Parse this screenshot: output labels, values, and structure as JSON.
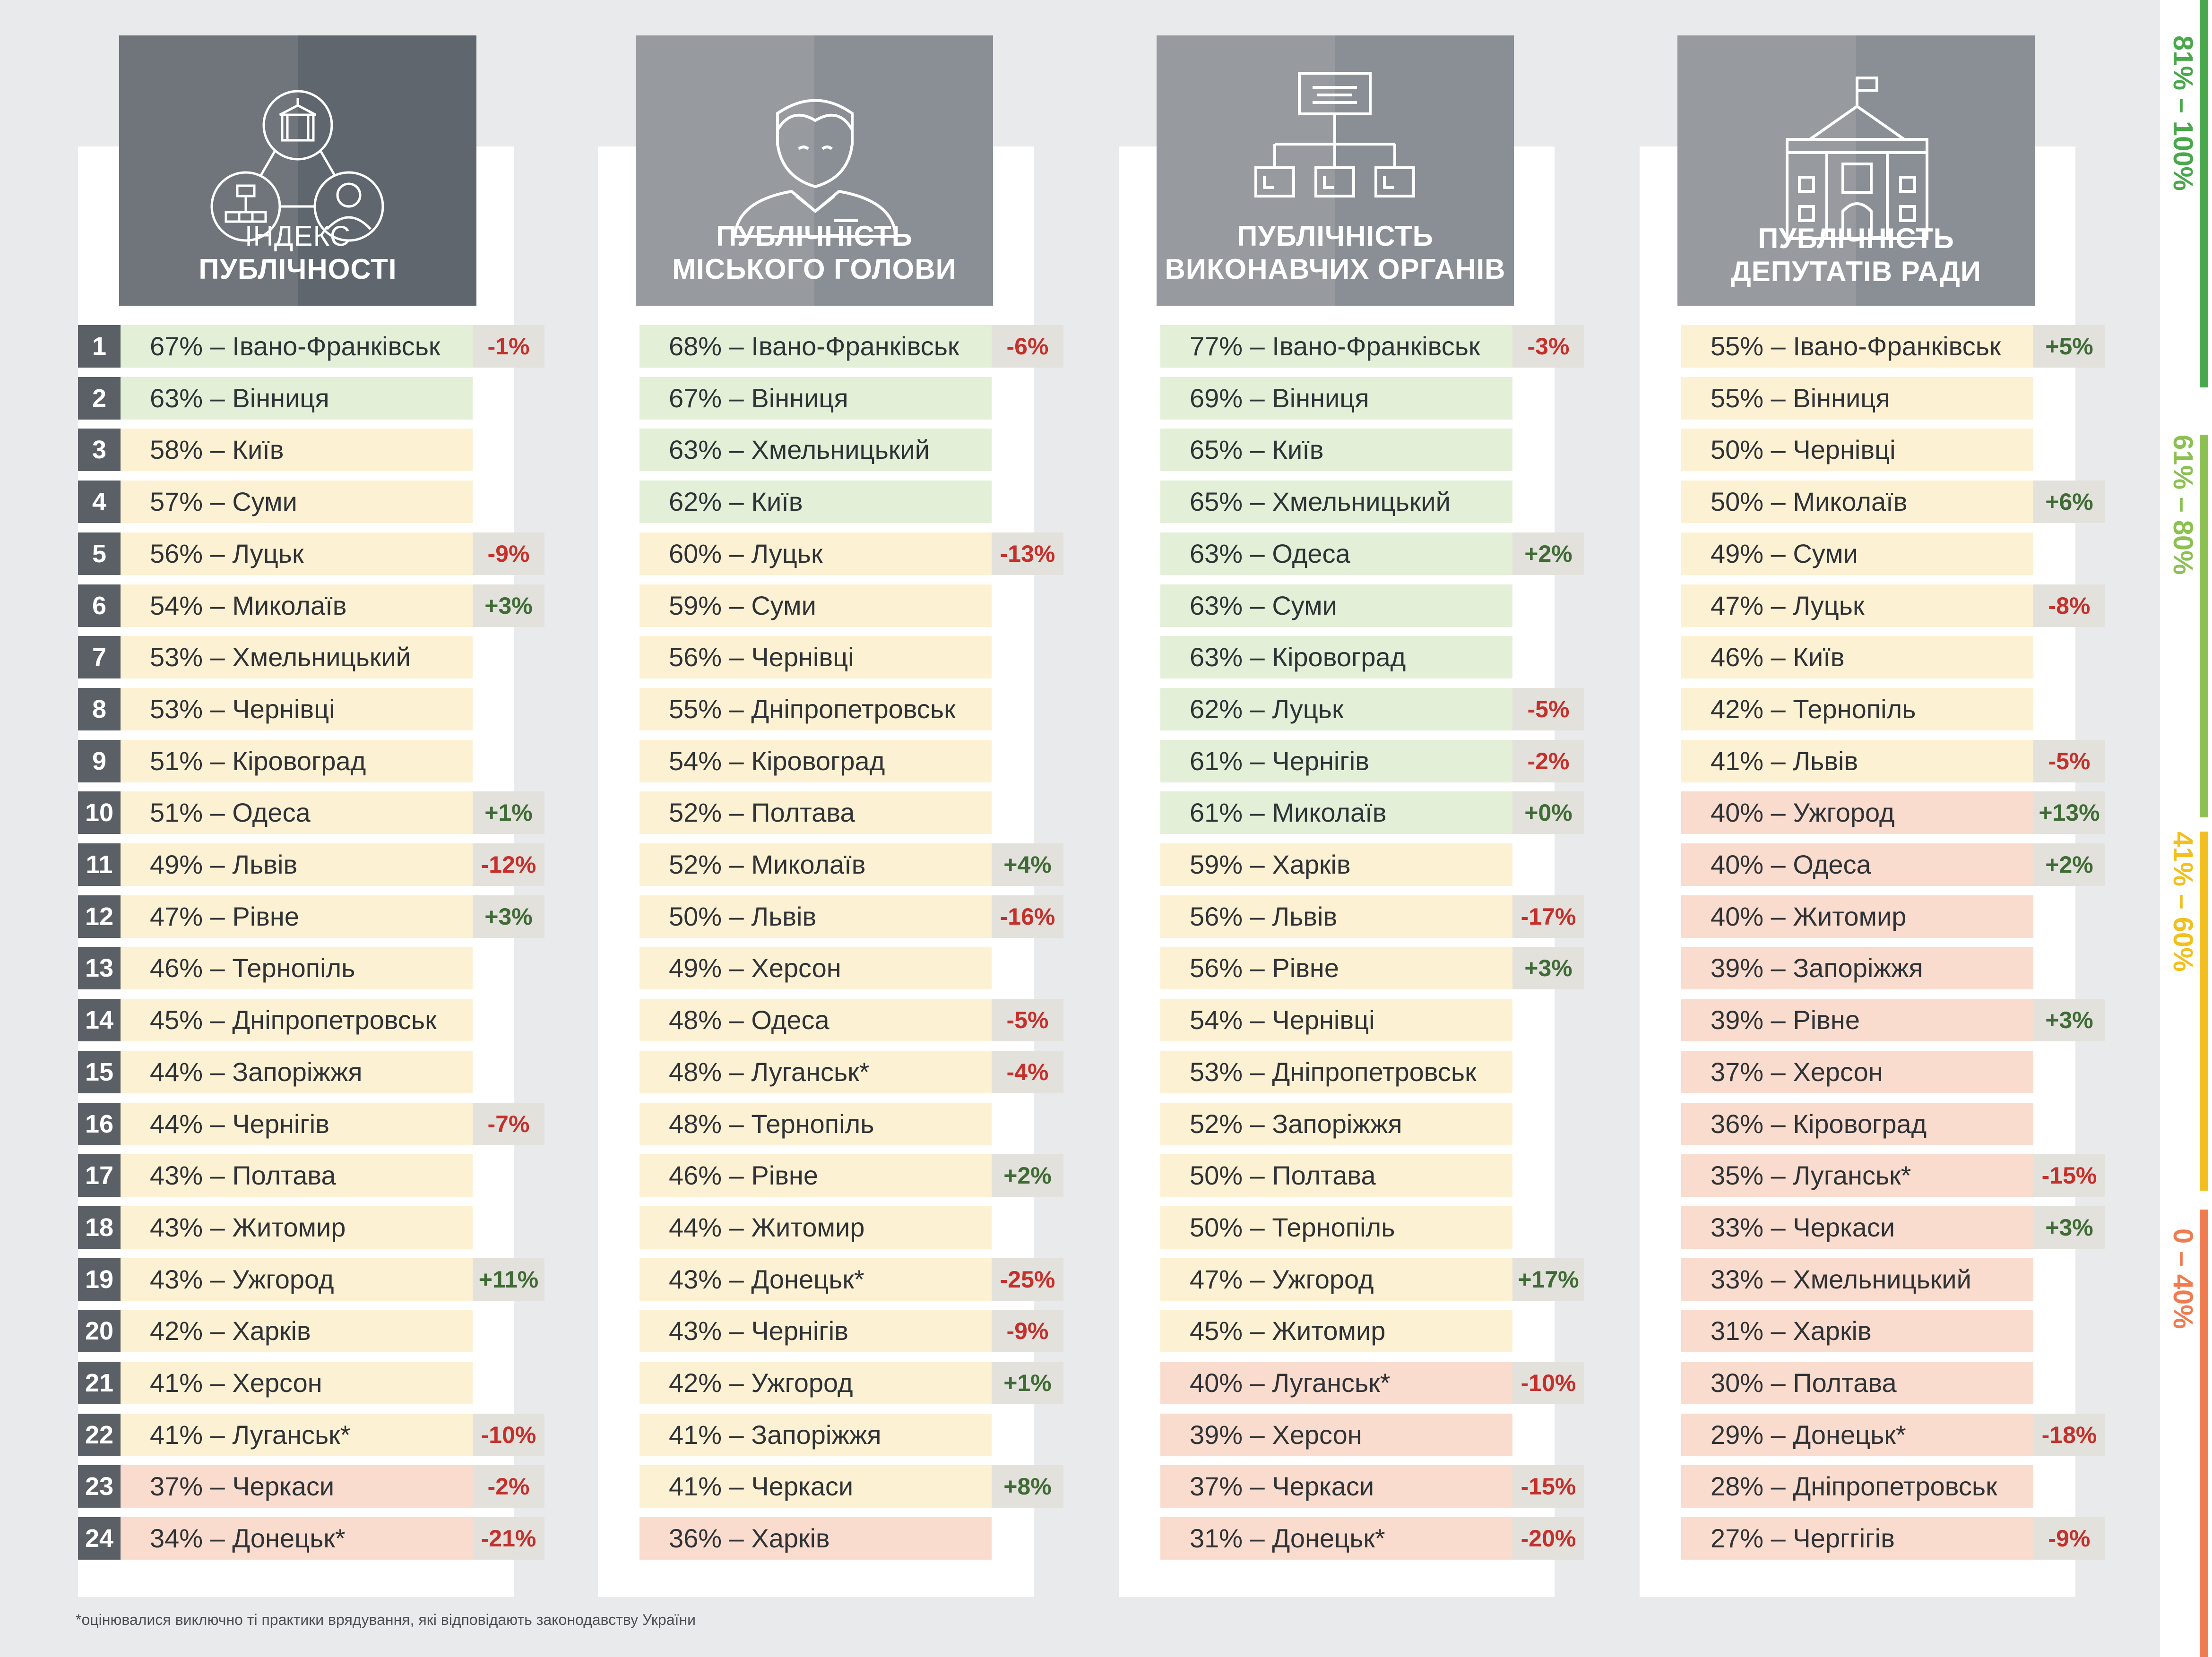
{
  "colors": {
    "green": "#e3efd7",
    "yellow": "#fdf1d3",
    "red": "#f9dccd",
    "rank_bg": "#5b6067",
    "delta_bg": "#e2e1dc",
    "pos": "#3f6b35",
    "neg": "#c4302b"
  },
  "chart_data": [
    {
      "type": "table",
      "title_line1": "ІНДЕКС",
      "title_line2": "ПУБЛІЧНОСТІ",
      "icon": "index-network-icon",
      "rows": [
        {
          "rank": "1",
          "label": "67% – Івано-Франківськ",
          "value": 67,
          "delta": "-1%",
          "band": "green"
        },
        {
          "rank": "2",
          "label": "63% – Вінниця",
          "value": 63,
          "delta": "",
          "band": "green"
        },
        {
          "rank": "3",
          "label": "58% – Київ",
          "value": 58,
          "delta": "",
          "band": "yellow"
        },
        {
          "rank": "4",
          "label": "57% – Суми",
          "value": 57,
          "delta": "",
          "band": "yellow"
        },
        {
          "rank": "5",
          "label": "56% – Луцьк",
          "value": 56,
          "delta": "-9%",
          "band": "yellow"
        },
        {
          "rank": "6",
          "label": "54% – Миколаїв",
          "value": 54,
          "delta": "+3%",
          "band": "yellow"
        },
        {
          "rank": "7",
          "label": "53% – Хмельницький",
          "value": 53,
          "delta": "",
          "band": "yellow"
        },
        {
          "rank": "8",
          "label": "53% – Чернівці",
          "value": 53,
          "delta": "",
          "band": "yellow"
        },
        {
          "rank": "9",
          "label": "51% – Кіровоград",
          "value": 51,
          "delta": "",
          "band": "yellow"
        },
        {
          "rank": "10",
          "label": "51% – Одеса",
          "value": 51,
          "delta": "+1%",
          "band": "yellow"
        },
        {
          "rank": "11",
          "label": "49% – Львів",
          "value": 49,
          "delta": "-12%",
          "band": "yellow"
        },
        {
          "rank": "12",
          "label": "47% – Рівне",
          "value": 47,
          "delta": "+3%",
          "band": "yellow"
        },
        {
          "rank": "13",
          "label": "46% – Тернопіль",
          "value": 46,
          "delta": "",
          "band": "yellow"
        },
        {
          "rank": "14",
          "label": "45% – Дніпропетровськ",
          "value": 45,
          "delta": "",
          "band": "yellow"
        },
        {
          "rank": "15",
          "label": "44% – Запоріжжя",
          "value": 44,
          "delta": "",
          "band": "yellow"
        },
        {
          "rank": "16",
          "label": "44% – Чернігів",
          "value": 44,
          "delta": "-7%",
          "band": "yellow"
        },
        {
          "rank": "17",
          "label": "43% – Полтава",
          "value": 43,
          "delta": "",
          "band": "yellow"
        },
        {
          "rank": "18",
          "label": "43% – Житомир",
          "value": 43,
          "delta": "",
          "band": "yellow"
        },
        {
          "rank": "19",
          "label": "43% – Ужгород",
          "value": 43,
          "delta": "+11%",
          "band": "yellow"
        },
        {
          "rank": "20",
          "label": "42% – Харків",
          "value": 42,
          "delta": "",
          "band": "yellow"
        },
        {
          "rank": "21",
          "label": "41% – Херсон",
          "value": 41,
          "delta": "",
          "band": "yellow"
        },
        {
          "rank": "22",
          "label": "41% – Луганськ*",
          "value": 41,
          "delta": "-10%",
          "band": "yellow"
        },
        {
          "rank": "23",
          "label": "37% – Черкаси",
          "value": 37,
          "delta": "-2%",
          "band": "red"
        },
        {
          "rank": "24",
          "label": "34% – Донецьк*",
          "value": 34,
          "delta": "-21%",
          "band": "red"
        }
      ]
    },
    {
      "type": "table",
      "title_line1": "ПУБЛІЧНІСТЬ",
      "title_line2": "МІСЬКОГО ГОЛОВИ",
      "icon": "mayor-person-icon",
      "rows": [
        {
          "label": "68% – Івано-Франківськ",
          "value": 68,
          "delta": "-6%",
          "band": "green"
        },
        {
          "label": "67% – Вінниця",
          "value": 67,
          "delta": "",
          "band": "green"
        },
        {
          "label": "63% – Хмельницький",
          "value": 63,
          "delta": "",
          "band": "green"
        },
        {
          "label": "62% – Київ",
          "value": 62,
          "delta": "",
          "band": "green"
        },
        {
          "label": "60% – Луцьк",
          "value": 60,
          "delta": "-13%",
          "band": "yellow"
        },
        {
          "label": "59% – Суми",
          "value": 59,
          "delta": "",
          "band": "yellow"
        },
        {
          "label": "56% – Чернівці",
          "value": 56,
          "delta": "",
          "band": "yellow"
        },
        {
          "label": "55% – Дніпропетровськ",
          "value": 55,
          "delta": "",
          "band": "yellow"
        },
        {
          "label": "54% – Кіровоград",
          "value": 54,
          "delta": "",
          "band": "yellow"
        },
        {
          "label": "52% – Полтава",
          "value": 52,
          "delta": "",
          "band": "yellow"
        },
        {
          "label": "52% – Миколаїв",
          "value": 52,
          "delta": "+4%",
          "band": "yellow"
        },
        {
          "label": "50% – Львів",
          "value": 50,
          "delta": "-16%",
          "band": "yellow"
        },
        {
          "label": "49% – Херсон",
          "value": 49,
          "delta": "",
          "band": "yellow"
        },
        {
          "label": "48% – Одеса",
          "value": 48,
          "delta": "-5%",
          "band": "yellow"
        },
        {
          "label": "48% – Луганськ*",
          "value": 48,
          "delta": "-4%",
          "band": "yellow"
        },
        {
          "label": "48% – Тернопіль",
          "value": 48,
          "delta": "",
          "band": "yellow"
        },
        {
          "label": "46% – Рівне",
          "value": 46,
          "delta": "+2%",
          "band": "yellow"
        },
        {
          "label": "44% – Житомир",
          "value": 44,
          "delta": "",
          "band": "yellow"
        },
        {
          "label": "43% – Донецьк*",
          "value": 43,
          "delta": "-25%",
          "band": "yellow"
        },
        {
          "label": "43% – Чернігів",
          "value": 43,
          "delta": "-9%",
          "band": "yellow"
        },
        {
          "label": "42% – Ужгород",
          "value": 42,
          "delta": "+1%",
          "band": "yellow"
        },
        {
          "label": "41% – Запоріжжя",
          "value": 41,
          "delta": "",
          "band": "yellow"
        },
        {
          "label": "41% – Черкаси",
          "value": 41,
          "delta": "+8%",
          "band": "yellow"
        },
        {
          "label": "36% – Харків",
          "value": 36,
          "delta": "",
          "band": "red"
        }
      ]
    },
    {
      "type": "table",
      "title_line1": "ПУБЛІЧНІСТЬ",
      "title_line2": "ВИКОНАВЧИХ ОРГАНІВ",
      "icon": "org-chart-icon",
      "rows": [
        {
          "label": "77% – Івано-Франківськ",
          "value": 77,
          "delta": "-3%",
          "band": "green"
        },
        {
          "label": "69% – Вінниця",
          "value": 69,
          "delta": "",
          "band": "green"
        },
        {
          "label": "65% – Київ",
          "value": 65,
          "delta": "",
          "band": "green"
        },
        {
          "label": "65% – Хмельницький",
          "value": 65,
          "delta": "",
          "band": "green"
        },
        {
          "label": "63% – Одеса",
          "value": 63,
          "delta": "+2%",
          "band": "green"
        },
        {
          "label": "63% – Суми",
          "value": 63,
          "delta": "",
          "band": "green"
        },
        {
          "label": "63% – Кіровоград",
          "value": 63,
          "delta": "",
          "band": "green"
        },
        {
          "label": "62% – Луцьк",
          "value": 62,
          "delta": "-5%",
          "band": "green"
        },
        {
          "label": "61% – Чернігів",
          "value": 61,
          "delta": "-2%",
          "band": "green"
        },
        {
          "label": "61% – Миколаїв",
          "value": 61,
          "delta": "+0%",
          "band": "green"
        },
        {
          "label": "59% – Харків",
          "value": 59,
          "delta": "",
          "band": "yellow"
        },
        {
          "label": "56% – Львів",
          "value": 56,
          "delta": "-17%",
          "band": "yellow"
        },
        {
          "label": "56% – Рівне",
          "value": 56,
          "delta": "+3%",
          "band": "yellow"
        },
        {
          "label": "54% – Чернівці",
          "value": 54,
          "delta": "",
          "band": "yellow"
        },
        {
          "label": "53% – Дніпропетровськ",
          "value": 53,
          "delta": "",
          "band": "yellow"
        },
        {
          "label": "52% – Запоріжжя",
          "value": 52,
          "delta": "",
          "band": "yellow"
        },
        {
          "label": "50% – Полтава",
          "value": 50,
          "delta": "",
          "band": "yellow"
        },
        {
          "label": "50% – Тернопіль",
          "value": 50,
          "delta": "",
          "band": "yellow"
        },
        {
          "label": "47% – Ужгород",
          "value": 47,
          "delta": "+17%",
          "band": "yellow"
        },
        {
          "label": "45% – Житомир",
          "value": 45,
          "delta": "",
          "band": "yellow"
        },
        {
          "label": "40% – Луганськ*",
          "value": 40,
          "delta": "-10%",
          "band": "red"
        },
        {
          "label": "39% – Херсон",
          "value": 39,
          "delta": "",
          "band": "red"
        },
        {
          "label": "37% – Черкаси",
          "value": 37,
          "delta": "-15%",
          "band": "red"
        },
        {
          "label": "31% – Донецьк*",
          "value": 31,
          "delta": "-20%",
          "band": "red"
        }
      ]
    },
    {
      "type": "table",
      "title_line1": "ПУБЛІЧНІСТЬ",
      "title_line2": "ДЕПУТАТІВ РАДИ",
      "icon": "council-building-icon",
      "rows": [
        {
          "label": "55% – Івано-Франківськ",
          "value": 55,
          "delta": "+5%",
          "band": "yellow"
        },
        {
          "label": "55% – Вінниця",
          "value": 55,
          "delta": "",
          "band": "yellow"
        },
        {
          "label": "50% – Чернівці",
          "value": 50,
          "delta": "",
          "band": "yellow"
        },
        {
          "label": "50% – Миколаїв",
          "value": 50,
          "delta": "+6%",
          "band": "yellow"
        },
        {
          "label": "49% – Суми",
          "value": 49,
          "delta": "",
          "band": "yellow"
        },
        {
          "label": "47% – Луцьк",
          "value": 47,
          "delta": "-8%",
          "band": "yellow"
        },
        {
          "label": "46% – Київ",
          "value": 46,
          "delta": "",
          "band": "yellow"
        },
        {
          "label": "42% – Тернопіль",
          "value": 42,
          "delta": "",
          "band": "yellow"
        },
        {
          "label": "41% – Львів",
          "value": 41,
          "delta": "-5%",
          "band": "yellow"
        },
        {
          "label": "40% – Ужгород",
          "value": 40,
          "delta": "+13%",
          "band": "red"
        },
        {
          "label": "40% – Одеса",
          "value": 40,
          "delta": "+2%",
          "band": "red"
        },
        {
          "label": "40% – Житомир",
          "value": 40,
          "delta": "",
          "band": "red"
        },
        {
          "label": "39% – Запоріжжя",
          "value": 39,
          "delta": "",
          "band": "red"
        },
        {
          "label": "39% – Рівне",
          "value": 39,
          "delta": "+3%",
          "band": "red"
        },
        {
          "label": "37% – Херсон",
          "value": 37,
          "delta": "",
          "band": "red"
        },
        {
          "label": "36% – Кіровоград",
          "value": 36,
          "delta": "",
          "band": "red"
        },
        {
          "label": "35% – Луганськ*",
          "value": 35,
          "delta": "-15%",
          "band": "red"
        },
        {
          "label": "33% – Черкаси",
          "value": 33,
          "delta": "+3%",
          "band": "red"
        },
        {
          "label": "33% – Хмельницький",
          "value": 33,
          "delta": "",
          "band": "red"
        },
        {
          "label": "31% – Харків",
          "value": 31,
          "delta": "",
          "band": "red"
        },
        {
          "label": "30% – Полтава",
          "value": 30,
          "delta": "",
          "band": "red"
        },
        {
          "label": "29% – Донецьк*",
          "value": 29,
          "delta": "-18%",
          "band": "red"
        },
        {
          "label": "28% – Дніпропетровськ",
          "value": 28,
          "delta": "",
          "band": "red"
        },
        {
          "label": "27% – Черггігів",
          "value": 27,
          "delta": "-9%",
          "band": "red"
        }
      ]
    }
  ],
  "legend": [
    {
      "label": "81% – 100%",
      "color": "#49a84c"
    },
    {
      "label": "61% – 80%",
      "color": "#8cc152"
    },
    {
      "label": "41% – 60%",
      "color": "#f2bf1f"
    },
    {
      "label": "0 – 40%",
      "color": "#ef7b4f"
    }
  ],
  "footnote": "*оцінювалися виключно ті практики врядування, які відповідають законодавству України"
}
